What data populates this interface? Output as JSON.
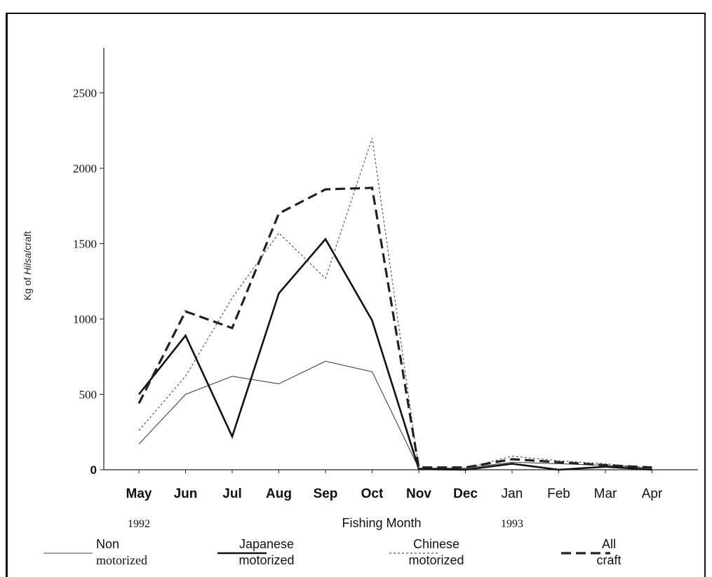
{
  "chart_data": {
    "type": "line",
    "title": "",
    "xlabel": "Fishing  Month",
    "ylabel": "Kg of Hilsa/craft",
    "ylabel_parts": [
      "Kg of ",
      "Hilsa",
      "/craft"
    ],
    "categories": [
      "May",
      "Jun",
      "Jul",
      "Aug",
      "Sep",
      "Oct",
      "Nov",
      "Dec",
      "Jan",
      "Feb",
      "Mar",
      "Apr"
    ],
    "bold_categories": [
      "May",
      "Jun",
      "Jul",
      "Aug",
      "Sep",
      "Oct",
      "Nov",
      "Dec"
    ],
    "year_labels": [
      {
        "category": "May",
        "text": "1992"
      },
      {
        "category": "Jan",
        "text": "1993"
      }
    ],
    "ylim": [
      0,
      2800
    ],
    "yticks": [
      0,
      500,
      1000,
      1500,
      2000,
      2500
    ],
    "ytick_labels": [
      "0",
      "500",
      "1000",
      "1500",
      "2000",
      "2500"
    ],
    "grid": false,
    "legend_position": "bottom",
    "series": [
      {
        "name": "Non motorized",
        "legend": [
          "Non",
          "motorized"
        ],
        "style": "thin-solid",
        "values": [
          170,
          500,
          620,
          570,
          720,
          650,
          10,
          10,
          50,
          40,
          30,
          10
        ]
      },
      {
        "name": "Japanese motorized",
        "legend": [
          "Japanese",
          "motorized"
        ],
        "style": "thick-solid",
        "values": [
          500,
          890,
          220,
          1170,
          1530,
          990,
          5,
          0,
          40,
          0,
          20,
          0
        ]
      },
      {
        "name": "Chinese motorized",
        "legend": [
          "Chinese",
          "motorized"
        ],
        "style": "thin-dotted",
        "values": [
          260,
          620,
          1140,
          1570,
          1270,
          2200,
          10,
          10,
          90,
          60,
          40,
          10
        ]
      },
      {
        "name": "All craft",
        "legend": [
          "All",
          "craft"
        ],
        "style": "thick-dashed",
        "values": [
          440,
          1050,
          940,
          1700,
          1860,
          1870,
          15,
          15,
          70,
          50,
          30,
          15
        ]
      }
    ]
  }
}
